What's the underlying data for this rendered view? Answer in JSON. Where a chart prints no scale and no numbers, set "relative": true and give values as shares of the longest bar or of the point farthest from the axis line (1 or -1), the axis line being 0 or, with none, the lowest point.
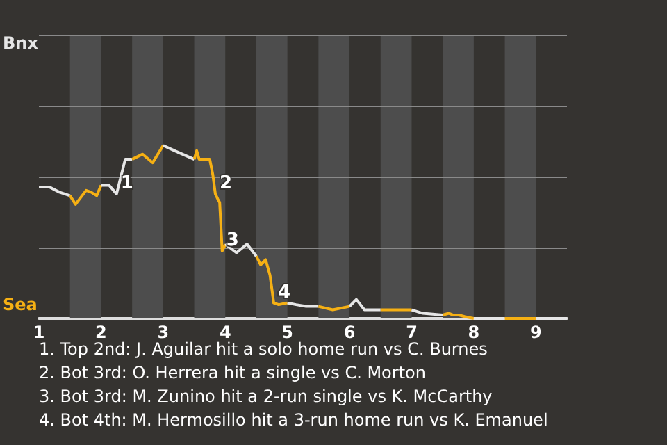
{
  "chart_data": {
    "type": "line",
    "relative": true,
    "series": [
      {
        "name": "Bnx",
        "color": "#e6e6e6",
        "x": [
          1,
          1.17,
          1.33,
          1.5
        ],
        "values": [
          0.76,
          0.76,
          0.73,
          0.71
        ]
      },
      {
        "name": "Sea",
        "color": "#f5b014",
        "x": [
          1.5,
          1.59,
          1.76,
          1.84,
          1.93,
          2
        ],
        "values": [
          0.71,
          0.66,
          0.74,
          0.73,
          0.71,
          0.77
        ]
      },
      {
        "color": "#e6e6e6",
        "x": [
          2,
          2.13,
          2.25,
          2.39,
          2.5
        ],
        "values": [
          0.77,
          0.77,
          0.72,
          0.92,
          0.92
        ]
      },
      {
        "color": "#f5b014",
        "x": [
          2.5,
          2.67,
          2.83,
          3
        ],
        "values": [
          0.92,
          0.95,
          0.9,
          1
        ]
      },
      {
        "color": "#e6e6e6",
        "x": [
          3,
          3.18,
          3.5
        ],
        "values": [
          1,
          0.97,
          0.92
        ]
      },
      {
        "color": "#f5b014",
        "x": [
          3.5,
          3.54,
          3.58,
          3.75,
          3.8,
          3.84,
          3.88,
          3.91,
          3.95,
          3.99,
          4
        ],
        "values": [
          0.92,
          0.97,
          0.92,
          0.92,
          0.83,
          0.72,
          0.69,
          0.67,
          0.39,
          0.42,
          0.43
        ]
      },
      {
        "color": "#e6e6e6",
        "x": [
          4,
          4.18,
          4.35,
          4.5
        ],
        "values": [
          0.43,
          0.38,
          0.43,
          0.36
        ]
      },
      {
        "color": "#f5b014",
        "x": [
          4.5,
          4.57,
          4.65,
          4.72,
          4.78,
          4.86,
          5
        ],
        "values": [
          0.36,
          0.31,
          0.34,
          0.25,
          0.09,
          0.08,
          0.09
        ]
      },
      {
        "color": "#e6e6e6",
        "x": [
          5,
          5.14,
          5.3,
          5.43,
          5.5
        ],
        "values": [
          0.09,
          0.08,
          0.07,
          0.07,
          0.07
        ]
      },
      {
        "color": "#f5b014",
        "x": [
          5.5,
          5.73,
          6
        ],
        "values": [
          0.07,
          0.05,
          0.07
        ]
      },
      {
        "color": "#e6e6e6",
        "x": [
          6,
          6.11,
          6.24,
          6.39,
          6.5
        ],
        "values": [
          0.07,
          0.11,
          0.05,
          0.05,
          0.05
        ]
      },
      {
        "color": "#f5b014",
        "x": [
          6.5,
          6.78,
          7
        ],
        "values": [
          0.05,
          0.05,
          0.05
        ]
      },
      {
        "color": "#e6e6e6",
        "x": [
          7,
          7.18,
          7.5
        ],
        "values": [
          0.05,
          0.03,
          0.02
        ]
      },
      {
        "color": "#f5b014",
        "x": [
          7.5,
          7.6,
          7.67,
          7.76,
          7.86,
          8
        ],
        "values": [
          0.02,
          0.03,
          0.02,
          0.02,
          0.01,
          0
        ]
      },
      {
        "color": "#e6e6e6",
        "x": [
          8,
          8.5
        ],
        "values": [
          0,
          0
        ]
      },
      {
        "color": "#f5b014",
        "x": [
          8.5,
          9
        ],
        "values": [
          0,
          0
        ]
      },
      {
        "color": "#e6e6e6",
        "x": [
          9,
          9.5
        ],
        "values": [
          0,
          0
        ]
      }
    ],
    "xlim": [
      1,
      9.5
    ],
    "xticks": [
      1,
      2,
      3,
      4,
      5,
      6,
      7,
      8,
      9
    ],
    "ref_lines": [
      {
        "axis": "y",
        "value": 0.41,
        "color": "#8a8a8a"
      },
      {
        "axis": "y",
        "value": 0.82,
        "color": "#8a8a8a"
      },
      {
        "axis": "y",
        "value": 1.23,
        "color": "#8a8a8a"
      },
      {
        "axis": "y",
        "value": 1.64,
        "color": "#8a8a8a"
      }
    ],
    "marker": "none",
    "line_style": "solid",
    "bands": [
      {
        "axis": "x",
        "from": 1.5,
        "to": 2,
        "color": "#4d4d4d"
      },
      {
        "axis": "x",
        "from": 2.5,
        "to": 3,
        "color": "#4d4d4d"
      },
      {
        "axis": "x",
        "from": 3.5,
        "to": 4,
        "color": "#4d4d4d"
      },
      {
        "axis": "x",
        "from": 4.5,
        "to": 5,
        "color": "#4d4d4d"
      },
      {
        "axis": "x",
        "from": 5.5,
        "to": 6,
        "color": "#4d4d4d"
      },
      {
        "axis": "x",
        "from": 6.5,
        "to": 7,
        "color": "#4d4d4d"
      },
      {
        "axis": "x",
        "from": 7.5,
        "to": 8,
        "color": "#4d4d4d"
      },
      {
        "axis": "x",
        "from": 8.5,
        "to": 9,
        "color": "#4d4d4d"
      }
    ],
    "annotations": [
      {
        "text": "1",
        "x": 2.25,
        "y": 0.72
      },
      {
        "text": "2",
        "x": 3.84,
        "y": 0.72
      },
      {
        "text": "3",
        "x": 3.95,
        "y": 0.39
      },
      {
        "text": "4",
        "x": 4.78,
        "y": 0.09
      },
      "1. Top 2nd: J. Aguilar hit a solo home run vs C. Burnes",
      "2. Bot 3rd: O. Herrera hit a single vs C. Morton",
      "3. Bot 3rd: M. Zunino hit a 2-run single vs K. McCarthy",
      "4. Bot 4th: M. Hermosillo hit a 3-run home run vs K. Emanuel"
    ]
  }
}
